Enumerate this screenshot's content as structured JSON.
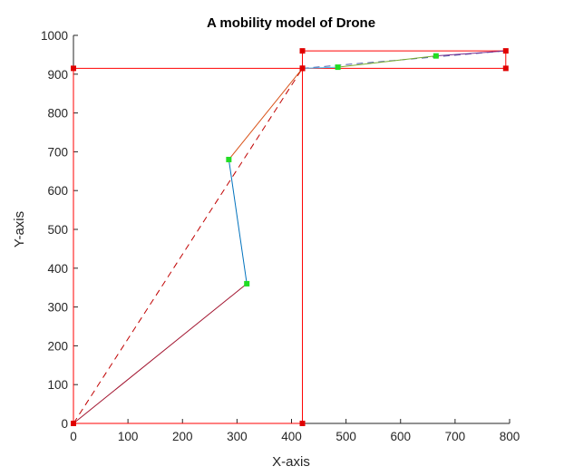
{
  "chart_data": {
    "type": "line",
    "title": "A mobility model of Drone",
    "xlabel": "X-axis",
    "ylabel": "Y-axis",
    "xlim": [
      0,
      800
    ],
    "ylim": [
      0,
      1000
    ],
    "xticks": [
      0,
      100,
      200,
      300,
      400,
      500,
      600,
      700,
      800
    ],
    "yticks": [
      0,
      100,
      200,
      300,
      400,
      500,
      600,
      700,
      800,
      900,
      1000
    ],
    "grid": false,
    "legend": "none",
    "series": [
      {
        "x": [
          0,
          0,
          420,
          420,
          0
        ],
        "y": [
          0,
          915,
          915,
          0,
          0
        ],
        "color": "#ff0000",
        "dash": "solid",
        "markers": true,
        "marker_color": "#e00000"
      },
      {
        "x": [
          420,
          420,
          793,
          793,
          420
        ],
        "y": [
          915,
          960,
          960,
          915,
          915
        ],
        "color": "#ff0000",
        "dash": "solid",
        "markers": true,
        "marker_color": "#e00000"
      },
      {
        "x": [
          0,
          420
        ],
        "y": [
          0,
          915
        ],
        "color": "#c00000",
        "dash": "dashed",
        "markers": false
      },
      {
        "x": [
          420,
          793
        ],
        "y": [
          915,
          960
        ],
        "color": "#4a5aa8",
        "dash": "dashed",
        "markers": false
      },
      {
        "x": [
          0,
          318
        ],
        "y": [
          0,
          360
        ],
        "color": "#a2142f",
        "dash": "solid",
        "markers": false
      },
      {
        "x": [
          318,
          285
        ],
        "y": [
          360,
          680
        ],
        "color": "#0072bd",
        "dash": "solid",
        "markers": false
      },
      {
        "x": [
          285,
          420
        ],
        "y": [
          680,
          915
        ],
        "color": "#d95319",
        "dash": "solid",
        "markers": false
      },
      {
        "x": [
          420,
          485
        ],
        "y": [
          915,
          918
        ],
        "color": "#4dbeee",
        "dash": "solid",
        "markers": false
      },
      {
        "x": [
          485,
          665
        ],
        "y": [
          918,
          947
        ],
        "color": "#77ac30",
        "dash": "solid",
        "markers": false
      },
      {
        "x": [
          665,
          793
        ],
        "y": [
          947,
          960
        ],
        "color": "#7e2f8e",
        "dash": "solid",
        "markers": false
      }
    ],
    "waypoints": {
      "x": [
        318,
        285,
        485,
        665
      ],
      "y": [
        360,
        680,
        918,
        947
      ],
      "color": "#22dd22"
    }
  }
}
